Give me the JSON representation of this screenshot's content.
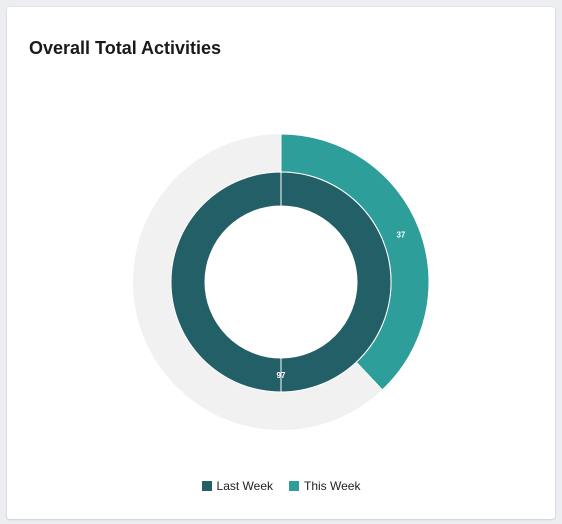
{
  "card": {
    "title": "Overall Total Activities"
  },
  "chart_data": {
    "type": "pie",
    "subtype": "nested-donut",
    "title": "Overall Total Activities",
    "legend_position": "bottom",
    "rings": [
      {
        "series": "This Week",
        "ring": "outer",
        "value": 37,
        "label": "37",
        "color": "#2e9e9a",
        "remainder_color": "#f1f1f1",
        "fraction_of_total": 0.38
      },
      {
        "series": "Last Week",
        "ring": "inner",
        "value": 97,
        "label": "97",
        "color": "#235f66",
        "fraction_of_total": 1.0
      }
    ]
  },
  "legend": {
    "items": [
      {
        "label": "Last Week",
        "color": "#235f66"
      },
      {
        "label": "This Week",
        "color": "#2e9e9a"
      }
    ]
  }
}
